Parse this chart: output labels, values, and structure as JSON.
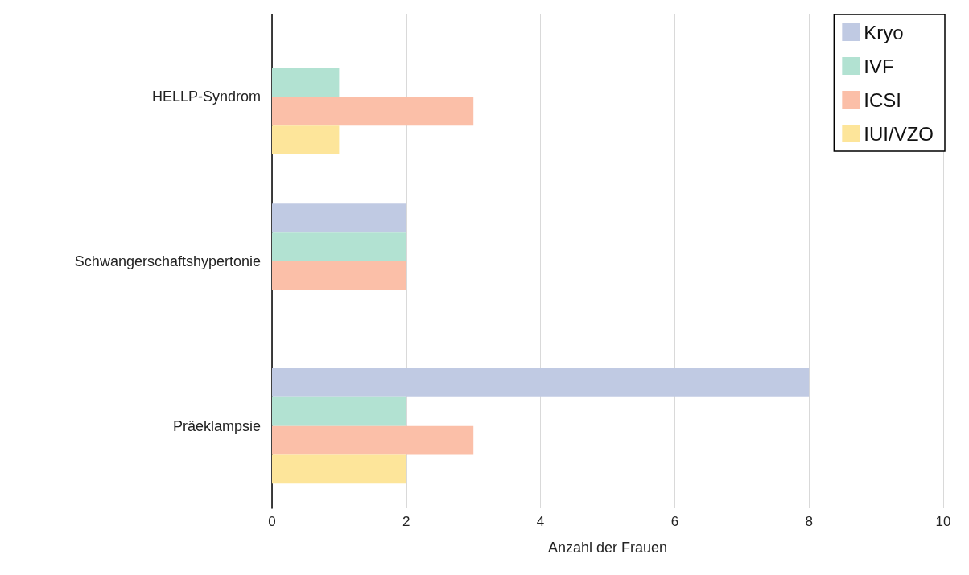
{
  "chart_data": {
    "type": "bar",
    "orientation": "horizontal",
    "categories": [
      "HELLP-Syndrom",
      "Schwangerschaftshypertonie",
      "Präeklampsie"
    ],
    "xlabel": "Anzahl der Frauen",
    "xlim": [
      0,
      10
    ],
    "xticks": [
      0,
      2,
      4,
      6,
      8,
      10
    ],
    "grid": "x",
    "legend": "top right",
    "series": [
      {
        "name": "Kryo",
        "color": "#c0cae3",
        "values": [
          0,
          2,
          8
        ]
      },
      {
        "name": "IVF",
        "color": "#b2e2d2",
        "values": [
          1,
          2,
          2
        ]
      },
      {
        "name": "ICSI",
        "color": "#fbbfa8",
        "values": [
          3,
          2,
          3
        ]
      },
      {
        "name": "IUI/VZO",
        "color": "#fde59a",
        "values": [
          1,
          0,
          2
        ]
      }
    ]
  }
}
